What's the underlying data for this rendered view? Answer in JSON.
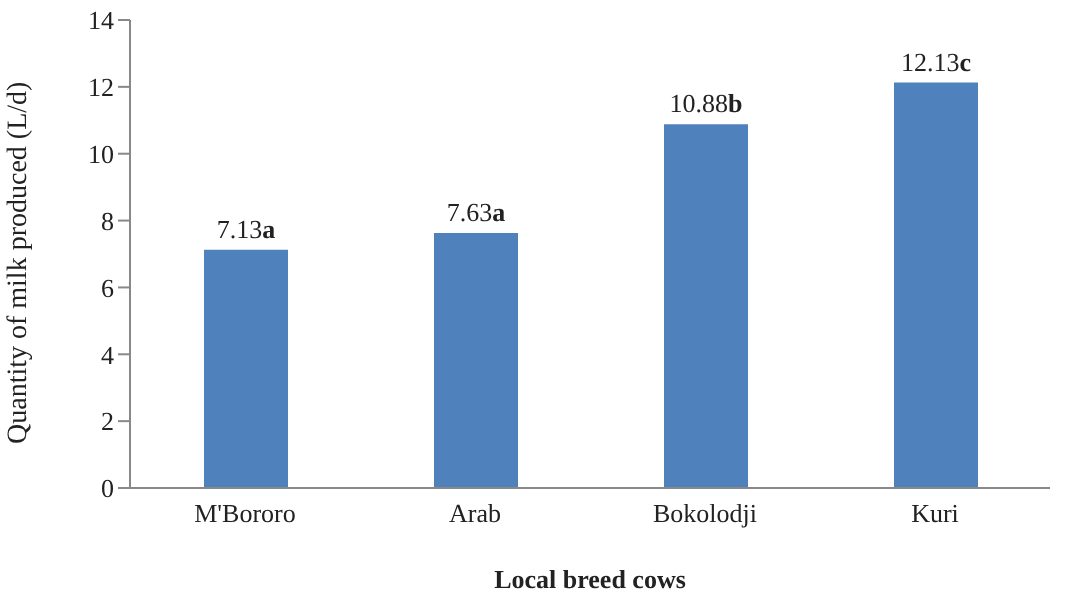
{
  "chart_data": {
    "type": "bar",
    "xlabel": "Local breed cows",
    "ylabel": "Quantity of milk produced (L/d)",
    "categories": [
      "M'Bororo",
      "Arab",
      "Bokolodji",
      "Kuri"
    ],
    "values": [
      7.13,
      7.63,
      10.88,
      12.13
    ],
    "color": "#4f81bd",
    "value_labels": [
      "7.13a",
      "7.63a",
      "10.88b",
      "12.13c"
    ],
    "ylim": [
      0,
      14
    ],
    "yticks": [
      0,
      2,
      4,
      6,
      8,
      10,
      12,
      14
    ],
    "grid": false,
    "legend": false
  }
}
